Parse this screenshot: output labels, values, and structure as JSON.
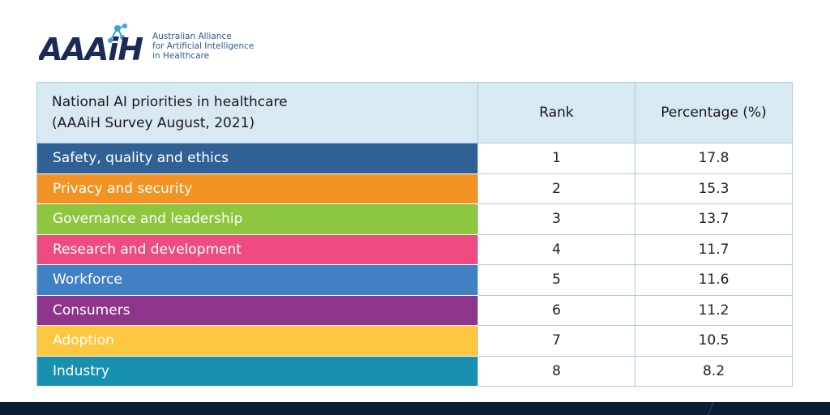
{
  "logo": {
    "mark_text": "AAAiH",
    "lines": [
      "Australian Alliance",
      "for Artificial Intelligence",
      "in Healthcare"
    ]
  },
  "colors": {
    "header_bg": "#d9e9f2",
    "border": "#a9cddd",
    "logo_dark": "#1c2a5a",
    "logo_accent": "#3aa6d8",
    "footer": "#0b1d33"
  },
  "chart_data": {
    "type": "table",
    "columns": [
      "National AI priorities in healthcare",
      "Rank",
      "Percentage (%)"
    ],
    "header_subtitle": "(AAAiH Survey August, 2021)",
    "rows": [
      {
        "category": "Safety, quality and ethics",
        "rank": "1",
        "percentage": "17.8",
        "color": "#2f6195"
      },
      {
        "category": "Privacy and security",
        "rank": "2",
        "percentage": "15.3",
        "color": "#f39323"
      },
      {
        "category": "Governance and leadership",
        "rank": "3",
        "percentage": "13.7",
        "color": "#8ec640"
      },
      {
        "category": "Research and development",
        "rank": "4",
        "percentage": "11.7",
        "color": "#ee4c80"
      },
      {
        "category": "Workforce",
        "rank": "5",
        "percentage": "11.6",
        "color": "#4180c3"
      },
      {
        "category": "Consumers",
        "rank": "6",
        "percentage": "11.2",
        "color": "#8e358b"
      },
      {
        "category": "Adoption",
        "rank": "7",
        "percentage": "10.5",
        "color": "#fdc741"
      },
      {
        "category": "Industry",
        "rank": "8",
        "percentage": "8.2",
        "color": "#1a90b1"
      }
    ]
  }
}
